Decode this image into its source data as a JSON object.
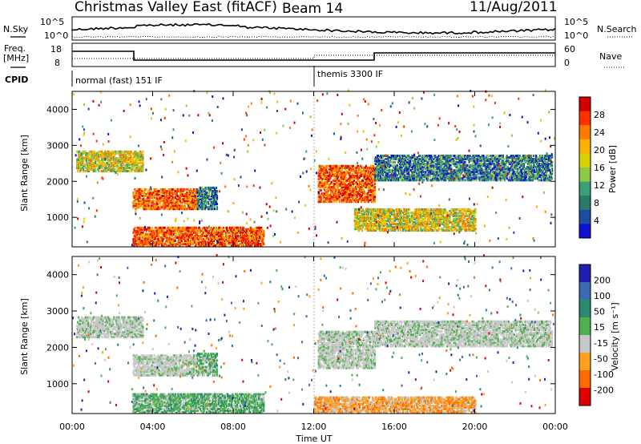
{
  "header": {
    "station": "Christmas Valley East (fitACF)",
    "beam": "Beam 14",
    "date": "11/Aug/2011"
  },
  "strip": {
    "nsky_label": "N.Sky",
    "nsearch_label": "N.Search",
    "noise_ticks_left": [
      "10^5",
      "10^0"
    ],
    "noise_ticks_right": [
      "10^5",
      "10^0"
    ],
    "freq_label_1": "Freq.",
    "freq_label_2": "[MHz]",
    "freq_ticks": [
      "18",
      "8"
    ],
    "nave_label": "Nave",
    "nave_ticks": [
      "60",
      "0"
    ],
    "cpid_label": "CPID",
    "cpid_segments": [
      {
        "label": "normal (fast) 151 IF"
      },
      {
        "label": "themis 3300 IF"
      }
    ]
  },
  "chart_data": [
    {
      "type": "heatmap",
      "title": "",
      "ylabel": "Slant Range [km]",
      "xlabel": "",
      "x_ticks": [
        "00:00",
        "04:00",
        "08:00",
        "12:00",
        "16:00",
        "20:00",
        "00:00"
      ],
      "y_ticks": [
        "1000",
        "2000",
        "3000",
        "4000"
      ],
      "x_range_hours": [
        0,
        24
      ],
      "y_range_km": [
        180,
        4500
      ],
      "colorbar": {
        "label": "Power [dB]",
        "ticks": [
          "28",
          "24",
          "20",
          "16",
          "12",
          "8",
          "4"
        ],
        "colors": [
          "#d00000",
          "#ff3000",
          "#ff7a00",
          "#ffb000",
          "#d8d000",
          "#8ec84a",
          "#3aa078",
          "#2a7a6a",
          "#1c4ea0",
          "#1010d0"
        ]
      },
      "echo_regions": [
        {
          "t0": 0.2,
          "t1": 3.5,
          "r0": 2250,
          "r1": 2800,
          "level": "mid-high"
        },
        {
          "t0": 3.0,
          "t1": 6.2,
          "r0": 1200,
          "r1": 1750,
          "level": "high"
        },
        {
          "t0": 6.2,
          "t1": 7.2,
          "r0": 1200,
          "r1": 1800,
          "level": "mid"
        },
        {
          "t0": 3.0,
          "t1": 9.5,
          "r0": 180,
          "r1": 700,
          "level": "high"
        },
        {
          "t0": 12.2,
          "t1": 15.0,
          "r0": 1400,
          "r1": 2400,
          "level": "high"
        },
        {
          "t0": 15.0,
          "t1": 23.8,
          "r0": 2000,
          "r1": 2700,
          "level": "mid"
        },
        {
          "t0": 14.0,
          "t1": 20.0,
          "r0": 600,
          "r1": 1200,
          "level": "mid-high"
        }
      ]
    },
    {
      "type": "heatmap",
      "title": "",
      "ylabel": "Slant Range [km]",
      "xlabel": "Time UT",
      "x_ticks": [
        "00:00",
        "04:00",
        "08:00",
        "12:00",
        "16:00",
        "20:00",
        "00:00"
      ],
      "y_ticks": [
        "1000",
        "2000",
        "3000",
        "4000"
      ],
      "x_range_hours": [
        0,
        24
      ],
      "y_range_km": [
        180,
        4500
      ],
      "colorbar": {
        "label": "Velocity [m s⁻¹]",
        "ticks": [
          "200",
          "100",
          "50",
          "15",
          "-15",
          "-50",
          "-100",
          "-200"
        ],
        "colors": [
          "#2020b0",
          "#3a6ab0",
          "#2a8a70",
          "#50b050",
          "#c8c8c8",
          "#ffa020",
          "#ff6a00",
          "#e00000"
        ]
      },
      "echo_regions": [
        {
          "t0": 0.2,
          "t1": 3.5,
          "r0": 2250,
          "r1": 2800,
          "level": "ground"
        },
        {
          "t0": 3.0,
          "t1": 6.2,
          "r0": 1200,
          "r1": 1750,
          "level": "ground"
        },
        {
          "t0": 6.2,
          "t1": 7.2,
          "r0": 1200,
          "r1": 1800,
          "level": "positive"
        },
        {
          "t0": 3.0,
          "t1": 9.5,
          "r0": 180,
          "r1": 700,
          "level": "positive"
        },
        {
          "t0": 12.2,
          "t1": 15.0,
          "r0": 1400,
          "r1": 2400,
          "level": "ground"
        },
        {
          "t0": 15.0,
          "t1": 23.8,
          "r0": 2000,
          "r1": 2700,
          "level": "ground"
        },
        {
          "t0": 12.0,
          "t1": 20.0,
          "r0": 180,
          "r1": 600,
          "level": "negative"
        }
      ]
    }
  ]
}
